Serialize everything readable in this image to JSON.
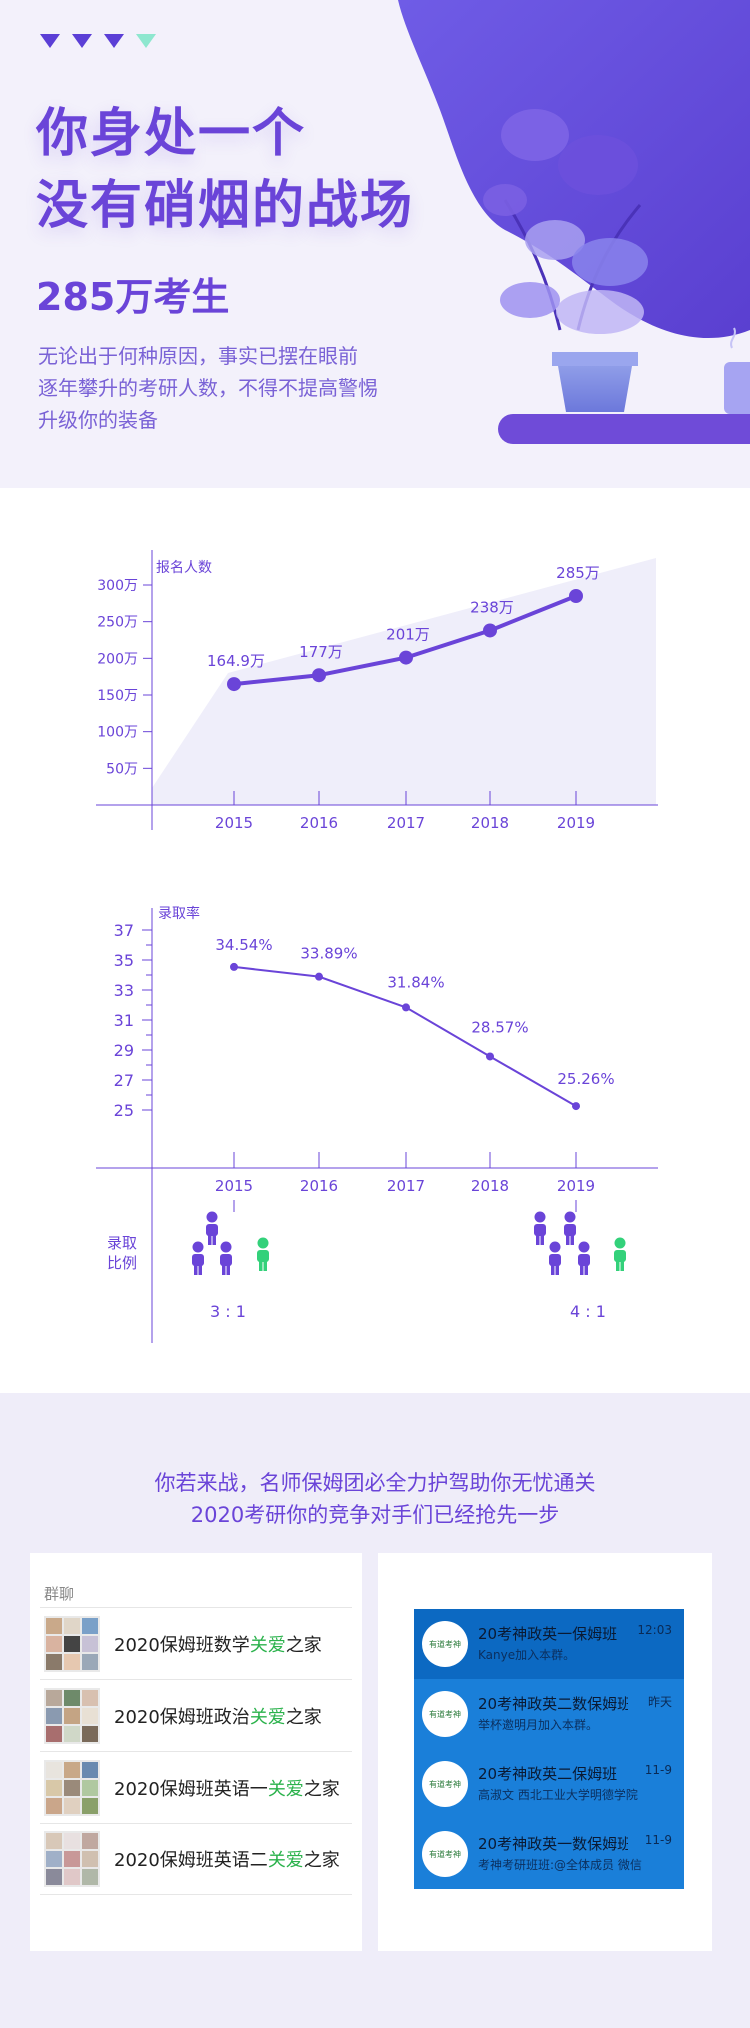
{
  "hero": {
    "title_line1": "你身处一个",
    "title_line2": "没有硝烟的战场",
    "stat": "285万考生",
    "desc": [
      "无论出于何种原因，事实已摆在眼前",
      "逐年攀升的考研人数，不得不提高警惕",
      "升级你的装备"
    ],
    "colors": {
      "accent": "#6a44d8",
      "mint": "#8ee7cf"
    }
  },
  "chart_data": [
    {
      "type": "line",
      "title": "",
      "ylabel": "报名人数",
      "xlabel": "",
      "x": [
        "2015",
        "2016",
        "2017",
        "2018",
        "2019"
      ],
      "y": [
        164.9,
        177,
        201,
        238,
        285
      ],
      "data_labels": [
        "164.9万",
        "177万",
        "201万",
        "238万",
        "285万"
      ],
      "y_ticks": [
        "50万",
        "100万",
        "150万",
        "200万",
        "250万",
        "300万"
      ],
      "y_tick_values": [
        50,
        100,
        150,
        200,
        250,
        300
      ],
      "ylim": [
        0,
        300
      ],
      "grid": false,
      "area_fill": true
    },
    {
      "type": "line",
      "title": "",
      "ylabel": "录取率",
      "xlabel": "",
      "x": [
        "2015",
        "2016",
        "2017",
        "2018",
        "2019"
      ],
      "y": [
        34.54,
        33.89,
        31.84,
        28.57,
        25.26
      ],
      "data_labels": [
        "34.54%",
        "33.89%",
        "31.84%",
        "28.57%",
        "25.26%"
      ],
      "y_ticks": [
        "25",
        "27",
        "29",
        "31",
        "33",
        "35",
        "37"
      ],
      "y_tick_values": [
        25,
        27,
        29,
        31,
        33,
        35,
        37
      ],
      "ylim": [
        24,
        38
      ],
      "grid": false
    }
  ],
  "ratio": {
    "label_line1": "录取",
    "label_line2": "比例",
    "left": "3 : 1",
    "right": "4 : 1"
  },
  "bottom": {
    "heading_line1": "你若来战，名师保姆团必全力护驾助你无忧通关",
    "heading_line2": "2020考研你的竞争对手们已经抢先一步",
    "group_label": "群聊",
    "groups": [
      {
        "prefix": "2020保姆班数学",
        "highlight": "关爱",
        "suffix": "之家"
      },
      {
        "prefix": "2020保姆班政治",
        "highlight": "关爱",
        "suffix": "之家"
      },
      {
        "prefix": "2020保姆班英语一",
        "highlight": "关爱",
        "suffix": "之家"
      },
      {
        "prefix": "2020保姆班英语二",
        "highlight": "关爱",
        "suffix": "之家"
      }
    ],
    "qq_chats": [
      {
        "logo": "有道考神",
        "title": "20考神政英一保姆班",
        "time": "12:03",
        "sub": "Kanye加入本群。"
      },
      {
        "logo": "有道考神",
        "title": "20考神政英二数保姆班",
        "time": "昨天",
        "sub": "举杯邀明月加入本群。"
      },
      {
        "logo": "有道考神",
        "title": "20考神政英二保姆班",
        "time": "11-9",
        "sub": "高淑文 西北工业大学明德学院"
      },
      {
        "logo": "有道考神",
        "title": "20考神政英一数保姆班",
        "time": "11-9",
        "sub": "考神考研班班:@全体成员 微信"
      }
    ]
  }
}
